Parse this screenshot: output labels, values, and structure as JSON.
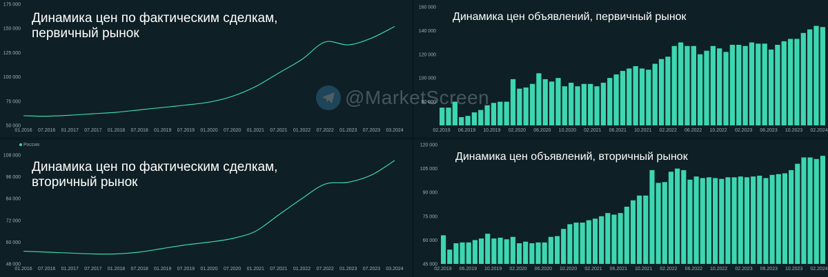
{
  "watermark": "@MarketScreen",
  "colors": {
    "accent": "#3dd6b0",
    "bar": "#3dd6b0",
    "background": "#0e1f25"
  },
  "chart_data": [
    {
      "type": "line",
      "title": "Динамика цен по фактическим сделкам, первичный рынок",
      "xlabel": "",
      "ylabel": "",
      "ylim": [
        50000,
        175000
      ],
      "yticks": [
        "50 000",
        "75 000",
        "100 000",
        "125 000",
        "150 000",
        "175 000"
      ],
      "xticks": [
        "01.2016",
        "07.2016",
        "01.2017",
        "07.2017",
        "01.2018",
        "07.2018",
        "01.2019",
        "07.2019",
        "01.2020",
        "07.2020",
        "01.2021",
        "07.2021",
        "01.2022",
        "07.2022",
        "01.2023",
        "07.2023",
        "03.2024"
      ],
      "grid": false,
      "series": [
        {
          "x": [
            "01.2016",
            "07.2016",
            "01.2017",
            "07.2017",
            "01.2018",
            "07.2018",
            "01.2019",
            "07.2019",
            "01.2020",
            "07.2020",
            "01.2021",
            "07.2021",
            "01.2022",
            "07.2022",
            "01.2023",
            "07.2023",
            "03.2024"
          ],
          "values": [
            60000,
            59500,
            60500,
            62000,
            63500,
            66000,
            68500,
            71000,
            74000,
            80000,
            90000,
            104000,
            118000,
            136000,
            133000,
            140000,
            152000
          ]
        }
      ]
    },
    {
      "type": "bar",
      "title": "Динамика цен объявлений, первичный рынок",
      "xlabel": "",
      "ylabel": "",
      "ylim": [
        60000,
        160000
      ],
      "yticks": [
        "80 000",
        "100 000",
        "120 000",
        "140 000",
        "160 000"
      ],
      "xticks": [
        "02.2019",
        "06.2019",
        "10.2019",
        "02.2020",
        "06.2020",
        "10.2020",
        "02.2021",
        "06.2021",
        "10.2021",
        "02.2022",
        "06.2022",
        "10.2022",
        "02.2023",
        "06.2023",
        "10.2023",
        "02.2024"
      ],
      "values": [
        75000,
        75000,
        80000,
        67000,
        68000,
        71000,
        73000,
        77000,
        79000,
        80000,
        80000,
        99000,
        91000,
        92000,
        95000,
        104000,
        99000,
        97000,
        100000,
        93000,
        96000,
        93000,
        95000,
        95000,
        93000,
        96000,
        100000,
        103000,
        106000,
        108000,
        110000,
        108000,
        107000,
        112000,
        116000,
        118000,
        127000,
        130000,
        127000,
        127000,
        120000,
        123000,
        127000,
        125000,
        122000,
        128000,
        128000,
        127000,
        130000,
        129000,
        129000,
        124000,
        128000,
        131000,
        133000,
        133000,
        138000,
        141000,
        144000,
        143000
      ]
    },
    {
      "type": "line",
      "title": "Динамика цен по фактическим сделкам, вторичный рынок",
      "legend": "Россия",
      "xlabel": "",
      "ylabel": "",
      "ylim": [
        48000,
        108000
      ],
      "yticks": [
        "48 000",
        "60 000",
        "72 000",
        "84 000",
        "96 000",
        "108 000"
      ],
      "xticks": [
        "01.2016",
        "07.2016",
        "01.2017",
        "07.2017",
        "01.2018",
        "07.2018",
        "01.2019",
        "07.2019",
        "01.2020",
        "07.2020",
        "01.2021",
        "07.2021",
        "01.2022",
        "07.2022",
        "01.2023",
        "07.2023",
        "03.2024"
      ],
      "grid": false,
      "series": [
        {
          "name": "Россия",
          "x": [
            "01.2016",
            "07.2016",
            "01.2017",
            "07.2017",
            "01.2018",
            "07.2018",
            "01.2019",
            "07.2019",
            "01.2020",
            "07.2020",
            "01.2021",
            "07.2021",
            "01.2022",
            "07.2022",
            "01.2023",
            "07.2023",
            "03.2024"
          ],
          "values": [
            55000,
            54500,
            54000,
            53500,
            53500,
            54500,
            56500,
            58500,
            60000,
            62000,
            66000,
            75000,
            84000,
            92000,
            93000,
            97000,
            105000
          ]
        }
      ]
    },
    {
      "type": "bar",
      "title": "Динамика цен объявлений, вторичный рынок",
      "xlabel": "",
      "ylabel": "",
      "ylim": [
        45000,
        120000
      ],
      "yticks": [
        "45 000",
        "60 000",
        "75 000",
        "90 000",
        "105 000",
        "120 000"
      ],
      "xticks": [
        "02.2019",
        "06.2019",
        "10.2019",
        "02.2020",
        "06.2020",
        "10.2020",
        "02.2021",
        "06.2021",
        "10.2021",
        "02.2022",
        "06.2022",
        "10.2022",
        "02.2023",
        "06.2023",
        "10.2023",
        "02.2024"
      ],
      "values": [
        63000,
        54000,
        58000,
        58500,
        58500,
        60000,
        61000,
        64000,
        61000,
        61500,
        60500,
        62000,
        58000,
        59000,
        58000,
        58500,
        58500,
        62000,
        62500,
        67000,
        70000,
        71000,
        71000,
        72500,
        73500,
        75000,
        77000,
        76000,
        77000,
        81000,
        85000,
        88000,
        88000,
        104000,
        96000,
        96500,
        103000,
        105000,
        104000,
        98000,
        100000,
        99000,
        99500,
        99000,
        98500,
        99500,
        99500,
        100000,
        99500,
        100000,
        100500,
        99000,
        101000,
        101500,
        102000,
        104000,
        108000,
        112000,
        112000,
        111000,
        113000
      ]
    }
  ]
}
